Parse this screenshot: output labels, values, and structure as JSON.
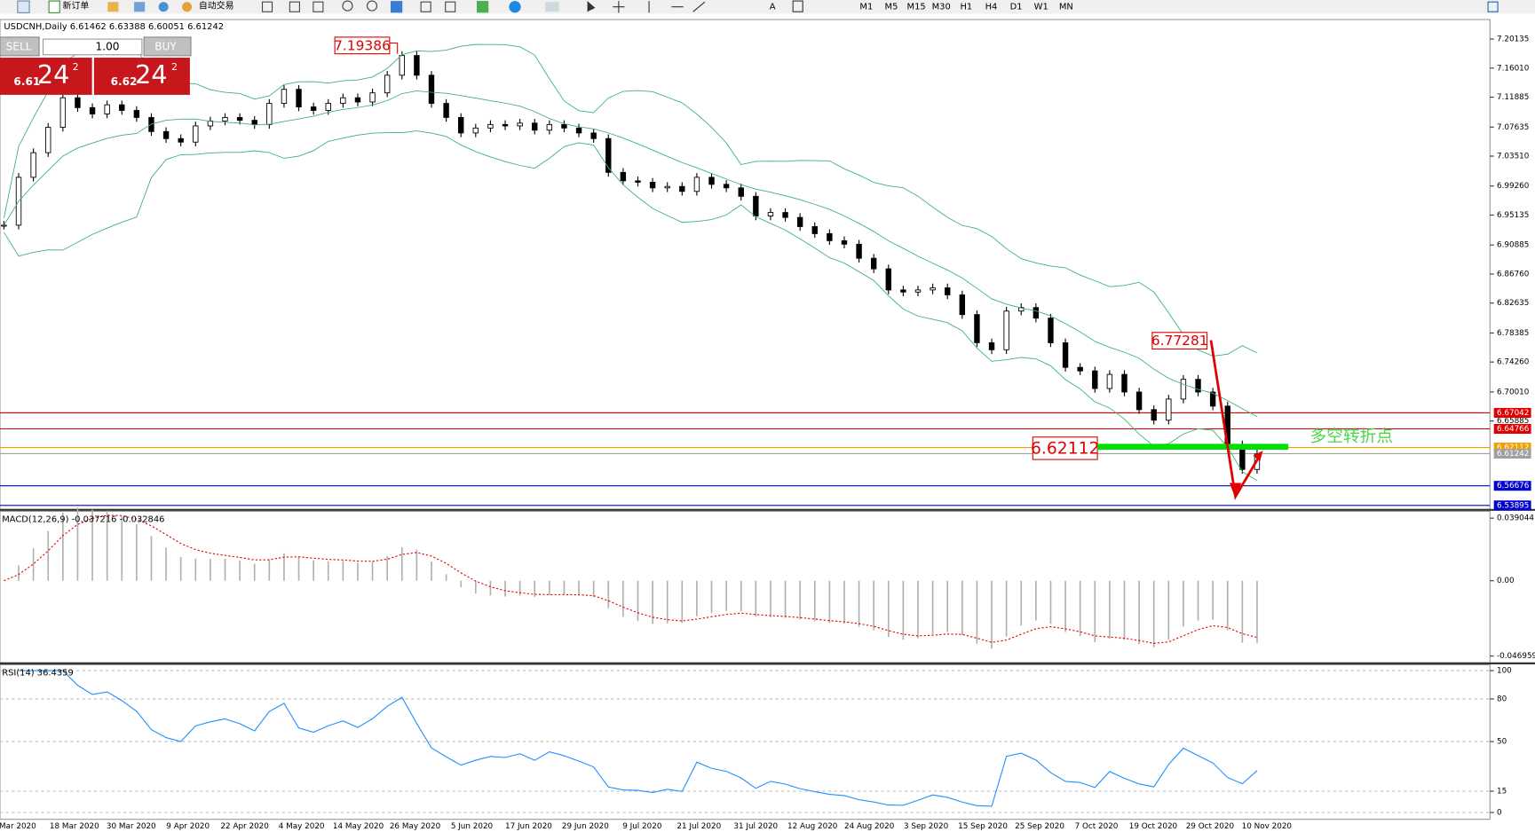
{
  "toolbar": {
    "new_order": "新订单",
    "auto_trading": "自动交易",
    "timeframes": [
      "M1",
      "M5",
      "M15",
      "M30",
      "H1",
      "H4",
      "D1",
      "W1",
      "MN"
    ]
  },
  "trade_panel": {
    "sell": "SELL",
    "buy": "BUY",
    "lot": "1.00",
    "sell_price": {
      "big": "6.61",
      "main": "24",
      "sup": "2"
    },
    "buy_price": {
      "big": "6.62",
      "main": "24",
      "sup": "2"
    }
  },
  "chart": {
    "header": "USDCNH,Daily 6.61462 6.63388 6.60051 6.61242",
    "ylim": [
      6.5333,
      7.2291
    ],
    "yticks": [
      7.20135,
      {
        "value": 7.1601,
        "label": "7.16010"
      },
      7.11885,
      7.07635,
      {
        "value": 7.0351,
        "label": "7.03510"
      },
      {
        "value": 6.9926,
        "label": "6.99260"
      },
      6.95135,
      6.90885,
      {
        "value": 6.8676,
        "label": "6.86760"
      },
      6.82635,
      6.78385,
      {
        "value": 6.7426,
        "label": "6.74260"
      },
      {
        "value": 6.7001,
        "label": "6.70010"
      },
      6.65885
    ],
    "closes": [
      6.937,
      7.005,
      7.04,
      7.076,
      7.118,
      7.104,
      7.095,
      7.108,
      7.1,
      7.09,
      7.07,
      7.06,
      7.055,
      7.078,
      7.085,
      7.09,
      7.086,
      7.08,
      7.11,
      7.13,
      7.105,
      7.1,
      7.11,
      7.118,
      7.112,
      7.125,
      7.15,
      7.178,
      7.15,
      7.11,
      7.09,
      7.068,
      7.075,
      7.08,
      7.078,
      7.082,
      7.072,
      7.08,
      7.075,
      7.068,
      7.06,
      7.012,
      7.0,
      6.998,
      6.99,
      6.992,
      6.985,
      7.005,
      6.995,
      6.99,
      6.978,
      6.95,
      6.955,
      6.948,
      6.935,
      6.925,
      6.915,
      6.91,
      6.89,
      6.875,
      6.845,
      6.842,
      6.845,
      6.848,
      6.838,
      6.81,
      6.77,
      6.76,
      6.815,
      6.82,
      6.805,
      6.77,
      6.735,
      6.73,
      6.705,
      6.725,
      6.7,
      6.675,
      6.66,
      6.69,
      6.718,
      6.7,
      6.68,
      6.625,
      6.59,
      6.612
    ],
    "levels": [
      {
        "value": 6.67042,
        "color": "#e00000"
      },
      {
        "value": 6.64766,
        "color": "#e00000"
      },
      {
        "value": 6.62112,
        "color": "#f0a000"
      },
      {
        "value": 6.61242,
        "color": "#a0a0a0"
      },
      {
        "value": 6.56676,
        "color": "#0000d0"
      },
      {
        "value": 6.53895,
        "color": "#0000d0"
      }
    ],
    "annotations": {
      "high": "7.19386",
      "swing": "6.77281",
      "pivot": "6.62112",
      "pivot_note": "多空转折点"
    },
    "dates": [
      "Mar 2020",
      "18 Mar 2020",
      "30 Mar 2020",
      "9 Apr 2020",
      "22 Apr 2020",
      "4 May 2020",
      "14 May 2020",
      "26 May 2020",
      "5 Jun 2020",
      "17 Jun 2020",
      "29 Jun 2020",
      "9 Jul 2020",
      "21 Jul 2020",
      "31 Jul 2020",
      "12 Aug 2020",
      "24 Aug 2020",
      "3 Sep 2020",
      "15 Sep 2020",
      "25 Sep 2020",
      "7 Oct 2020",
      "19 Oct 2020",
      "29 Oct 2020",
      "10 Nov 2020"
    ]
  },
  "macd": {
    "label": "MACD(12,26,9) -0.037216 -0.032846",
    "ylim": [
      -0.0512,
      0.0433
    ],
    "yticks": [
      0.039044,
      {
        "value": 0,
        "label": "0.00"
      },
      -0.046959
    ]
  },
  "rsi": {
    "label": "RSI(14) 36.4359",
    "ylim": [
      -4.8,
      104.1
    ],
    "yticks": [
      100,
      80,
      50,
      15,
      0
    ]
  }
}
